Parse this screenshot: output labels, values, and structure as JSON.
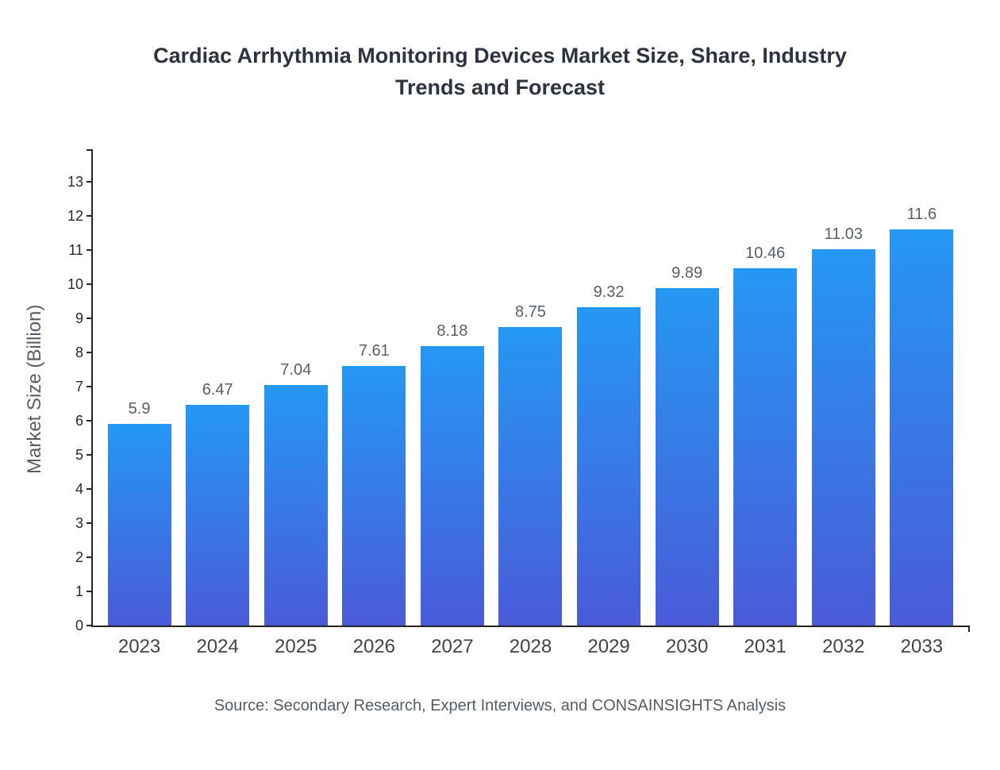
{
  "chart_data": {
    "type": "bar",
    "title": "Cardiac Arrhythmia Monitoring Devices Market Size, Share, Industry Trends and Forecast",
    "categories": [
      "2023",
      "2024",
      "2025",
      "2026",
      "2027",
      "2028",
      "2029",
      "2030",
      "2031",
      "2032",
      "2033"
    ],
    "values": [
      5.9,
      6.47,
      7.04,
      7.61,
      8.18,
      8.75,
      9.32,
      9.89,
      10.46,
      11.03,
      11.6
    ],
    "value_labels": [
      "5.9",
      "6.47",
      "7.04",
      "7.61",
      "8.18",
      "8.75",
      "9.32",
      "9.89",
      "10.46",
      "11.03",
      "11.6"
    ],
    "xlabel": "",
    "ylabel": "Market Size (Billion)",
    "ylim": [
      0,
      13.9
    ],
    "yticks": [
      0,
      1,
      2,
      3,
      4,
      5,
      6,
      7,
      8,
      9,
      10,
      11,
      12,
      13
    ],
    "grid": false,
    "legend": "none",
    "bar_gradient_top": "#2598F3",
    "bar_gradient_bottom": "#4A5BD8",
    "source": "Source: Secondary Research, Expert Interviews, and CONSAINSIGHTS Analysis"
  }
}
